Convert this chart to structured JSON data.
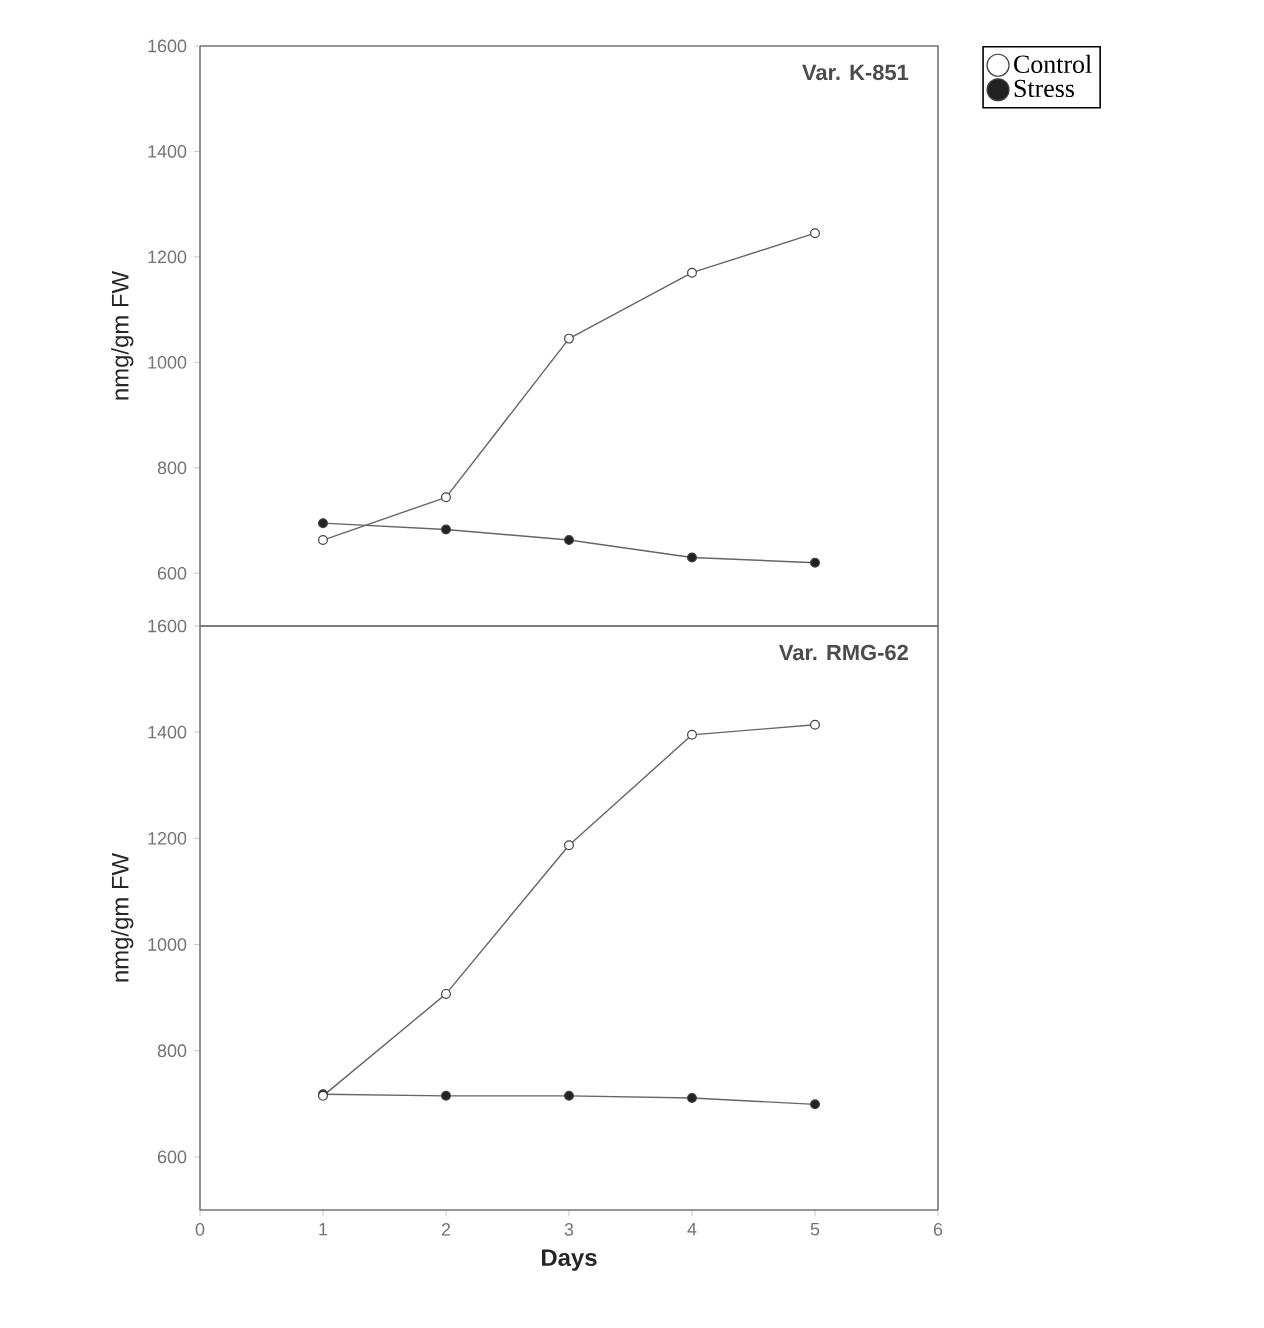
{
  "chart_data": [
    {
      "type": "line",
      "title": "Var. K-851",
      "ylabel": "nmg/gm FW",
      "x": [
        1,
        2,
        3,
        4,
        5
      ],
      "series": [
        {
          "name": "Control",
          "color": "#ffffff",
          "values": [
            663,
            744,
            1045,
            1170,
            1245
          ]
        },
        {
          "name": "Stress",
          "color": "#222222",
          "values": [
            695,
            683,
            663,
            630,
            620
          ]
        }
      ],
      "xlim": [
        0,
        6
      ],
      "xticks": [
        0,
        1,
        2,
        3,
        4,
        5,
        6
      ],
      "ylim": [
        500,
        1600
      ],
      "yticks": [
        600,
        800,
        1000,
        1200,
        1400,
        1600
      ],
      "tick_labels": "y",
      "marker": "circle",
      "legend": "top right",
      "grid": false
    },
    {
      "type": "line",
      "title": "Var. RMG-62",
      "ylabel": "nmg/gm FW",
      "xlabel": "Days",
      "x": [
        1,
        2,
        3,
        4,
        5
      ],
      "series": [
        {
          "color": "#ffffff",
          "values": [
            715,
            907,
            1187,
            1395,
            1414
          ]
        },
        {
          "color": "#222222",
          "values": [
            718,
            715,
            715,
            711,
            699
          ]
        }
      ],
      "xlim": [
        0,
        6
      ],
      "xticks": [
        0,
        1,
        2,
        3,
        4,
        5,
        6
      ],
      "ylim": [
        500,
        1600
      ],
      "yticks": [
        600,
        800,
        1000,
        1200,
        1400,
        1600
      ],
      "marker": "circle",
      "grid": false
    }
  ]
}
